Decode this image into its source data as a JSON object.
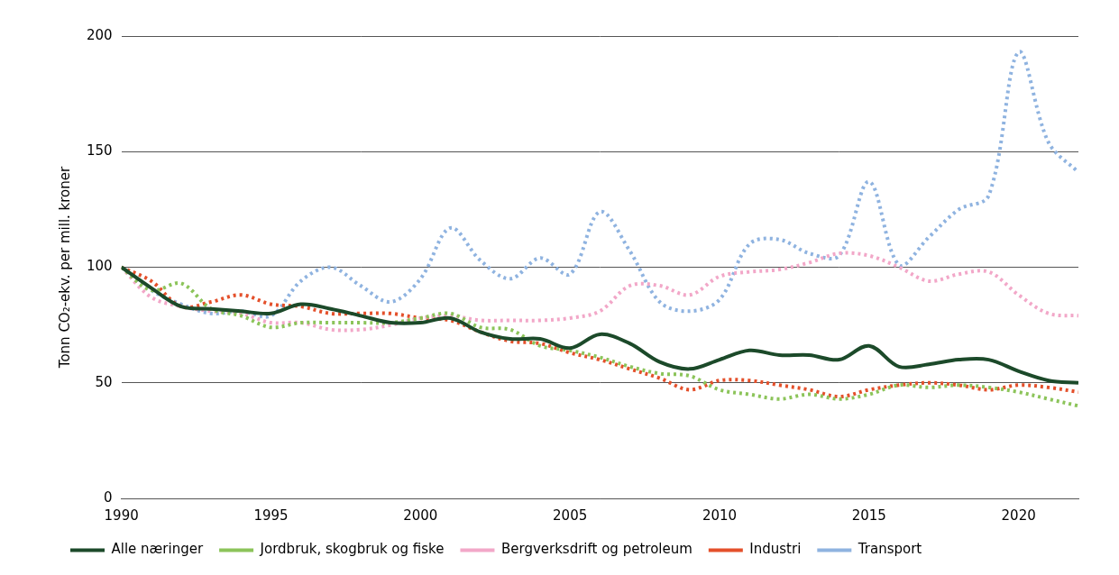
{
  "chart_data": {
    "type": "line",
    "y_label": "Tonn CO₂-ekv. per mill. kroner",
    "x": [
      1990,
      1991,
      1992,
      1993,
      1994,
      1995,
      1996,
      1997,
      1998,
      1999,
      2000,
      2001,
      2002,
      2003,
      2004,
      2005,
      2006,
      2007,
      2008,
      2009,
      2010,
      2011,
      2012,
      2013,
      2014,
      2015,
      2016,
      2017,
      2018,
      2019,
      2020,
      2021,
      2022
    ],
    "xlim": [
      1990,
      2022
    ],
    "xticks": [
      1990,
      1995,
      2000,
      2005,
      2010,
      2015,
      2020
    ],
    "ylim": [
      0,
      200
    ],
    "yticks": [
      0,
      50,
      100,
      150,
      200
    ],
    "grid": true,
    "legend": "bottom",
    "series": [
      {
        "name": "Alle næringer",
        "color": "#1c4a2a",
        "line_style": "solid",
        "values": [
          100,
          91,
          83,
          82,
          81,
          80,
          84,
          82,
          79,
          76,
          76,
          78,
          72,
          69,
          69,
          65,
          71,
          67,
          59,
          56,
          60,
          64,
          62,
          62,
          60,
          66,
          57,
          58,
          60,
          60,
          55,
          51,
          50
        ]
      },
      {
        "name": "Jordbruk, skogbruk og fiske",
        "color": "#8cc45a",
        "line_style": "dotted",
        "values": [
          100,
          90,
          93,
          82,
          79,
          74,
          76,
          76,
          76,
          76,
          78,
          80,
          74,
          73,
          66,
          64,
          61,
          57,
          54,
          53,
          47,
          45,
          43,
          45,
          43,
          45,
          49,
          48,
          49,
          48,
          46,
          43,
          40
        ]
      },
      {
        "name": "Bergverksdrift og petroleum",
        "color": "#f2a7c8",
        "line_style": "dotted",
        "values": [
          100,
          87,
          83,
          81,
          80,
          76,
          76,
          73,
          73,
          75,
          78,
          79,
          77,
          77,
          77,
          78,
          81,
          92,
          92,
          88,
          96,
          98,
          99,
          102,
          106,
          105,
          100,
          94,
          97,
          98,
          88,
          80,
          79
        ]
      },
      {
        "name": "Industri",
        "color": "#e4502b",
        "line_style": "dotted",
        "values": [
          100,
          94,
          83,
          85,
          88,
          84,
          83,
          80,
          80,
          80,
          78,
          77,
          72,
          68,
          67,
          63,
          60,
          56,
          52,
          47,
          51,
          51,
          49,
          47,
          44,
          47,
          49,
          50,
          49,
          47,
          49,
          48,
          46
        ]
      },
      {
        "name": "Transport",
        "color": "#8fb3e0",
        "line_style": "dotted",
        "values": [
          100,
          90,
          84,
          80,
          81,
          79,
          94,
          100,
          92,
          85,
          95,
          117,
          103,
          95,
          104,
          97,
          124,
          107,
          85,
          81,
          86,
          110,
          112,
          106,
          105,
          137,
          101,
          113,
          125,
          131,
          193,
          154,
          141
        ]
      }
    ]
  }
}
